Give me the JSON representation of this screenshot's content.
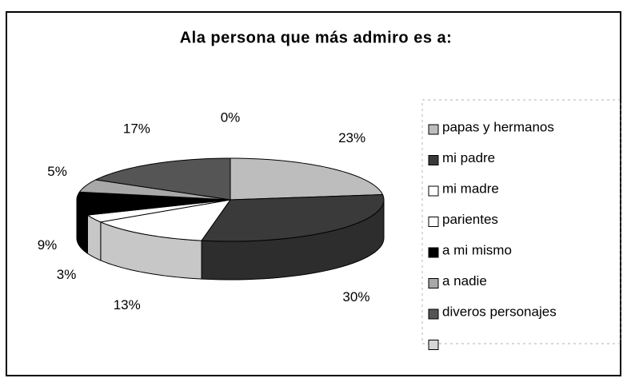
{
  "chart_data": {
    "type": "pie",
    "title": "Ala persona que más admiro es a:",
    "categories": [
      "papas y hermanos",
      "mi padre",
      "mi madre",
      "parientes",
      "a mi mismo",
      "a nadie",
      "diveros personajes",
      null
    ],
    "values": [
      23,
      30,
      13,
      3,
      9,
      5,
      17,
      0
    ],
    "value_labels": [
      "23%",
      "30%",
      "13%",
      "3%",
      "9%",
      "5%",
      "17%",
      "0%"
    ],
    "colors": [
      "#bdbdbd",
      "#3a3a3a",
      "#ffffff",
      "#ffffff",
      "#000000",
      "#a8a8a8",
      "#555555",
      "#d6d6d6"
    ],
    "legend": "right"
  }
}
